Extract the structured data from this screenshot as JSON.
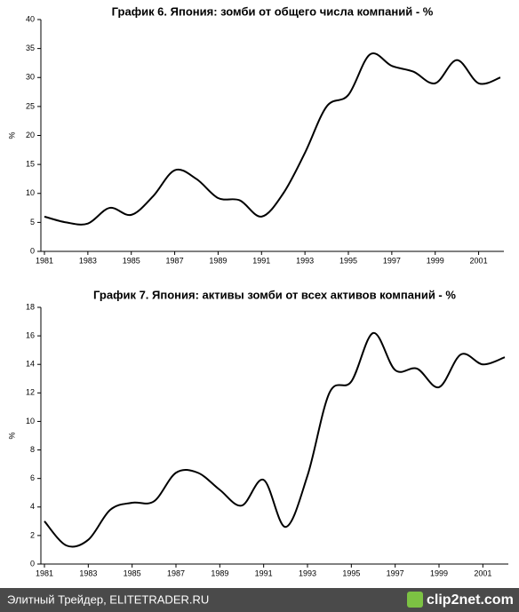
{
  "chart_data": [
    {
      "type": "line",
      "title": "График 6. Япония: зомби от общего числа компаний - %",
      "y_label": "%",
      "x": [
        1981,
        1982,
        1983,
        1984,
        1985,
        1986,
        1987,
        1988,
        1989,
        1990,
        1991,
        1992,
        1993,
        1994,
        1995,
        1996,
        1997,
        1998,
        1999,
        2000,
        2001,
        2002
      ],
      "series": [
        {
          "name": "зомби",
          "color": "#000000",
          "values": [
            6,
            5,
            4.8,
            7.5,
            6.3,
            9.5,
            14,
            12.5,
            9.2,
            8.8,
            6,
            10,
            17,
            25,
            27,
            34,
            32,
            31,
            29,
            33,
            29,
            30
          ]
        }
      ],
      "xlim": [
        1981,
        2002
      ],
      "xticks": [
        1981,
        1983,
        1985,
        1987,
        1989,
        1991,
        1993,
        1995,
        1997,
        1999,
        2001
      ],
      "ylim": [
        0,
        40
      ],
      "yticks": [
        0,
        5,
        10,
        15,
        20,
        25,
        30,
        35,
        40
      ],
      "grid": false
    },
    {
      "type": "line",
      "title": "График 7. Япония: активы зомби от всех активов компаний - %",
      "y_label": "%",
      "x": [
        1981,
        1982,
        1983,
        1984,
        1985,
        1986,
        1987,
        1988,
        1989,
        1990,
        1991,
        1992,
        1993,
        1994,
        1995,
        1996,
        1997,
        1998,
        1999,
        2000,
        2001,
        2002
      ],
      "series": [
        {
          "name": "активы зомби",
          "color": "#000000",
          "values": [
            3,
            1.3,
            1.7,
            3.8,
            4.3,
            4.4,
            6.4,
            6.4,
            5.2,
            4.1,
            5.9,
            2.6,
            6.2,
            12,
            12.8,
            16.2,
            13.6,
            13.7,
            12.4,
            14.7,
            14,
            14.5
          ]
        }
      ],
      "xlim": [
        1981,
        2002
      ],
      "xticks": [
        1981,
        1983,
        1985,
        1987,
        1989,
        1991,
        1993,
        1995,
        1997,
        1999,
        2001
      ],
      "ylim": [
        0,
        18
      ],
      "yticks": [
        0,
        2,
        4,
        6,
        8,
        10,
        12,
        14,
        16,
        18
      ],
      "grid": false
    }
  ],
  "footer": {
    "source": "Элитный Трейдер, ELITETRADER.RU",
    "watermark": "clip2net.com"
  }
}
